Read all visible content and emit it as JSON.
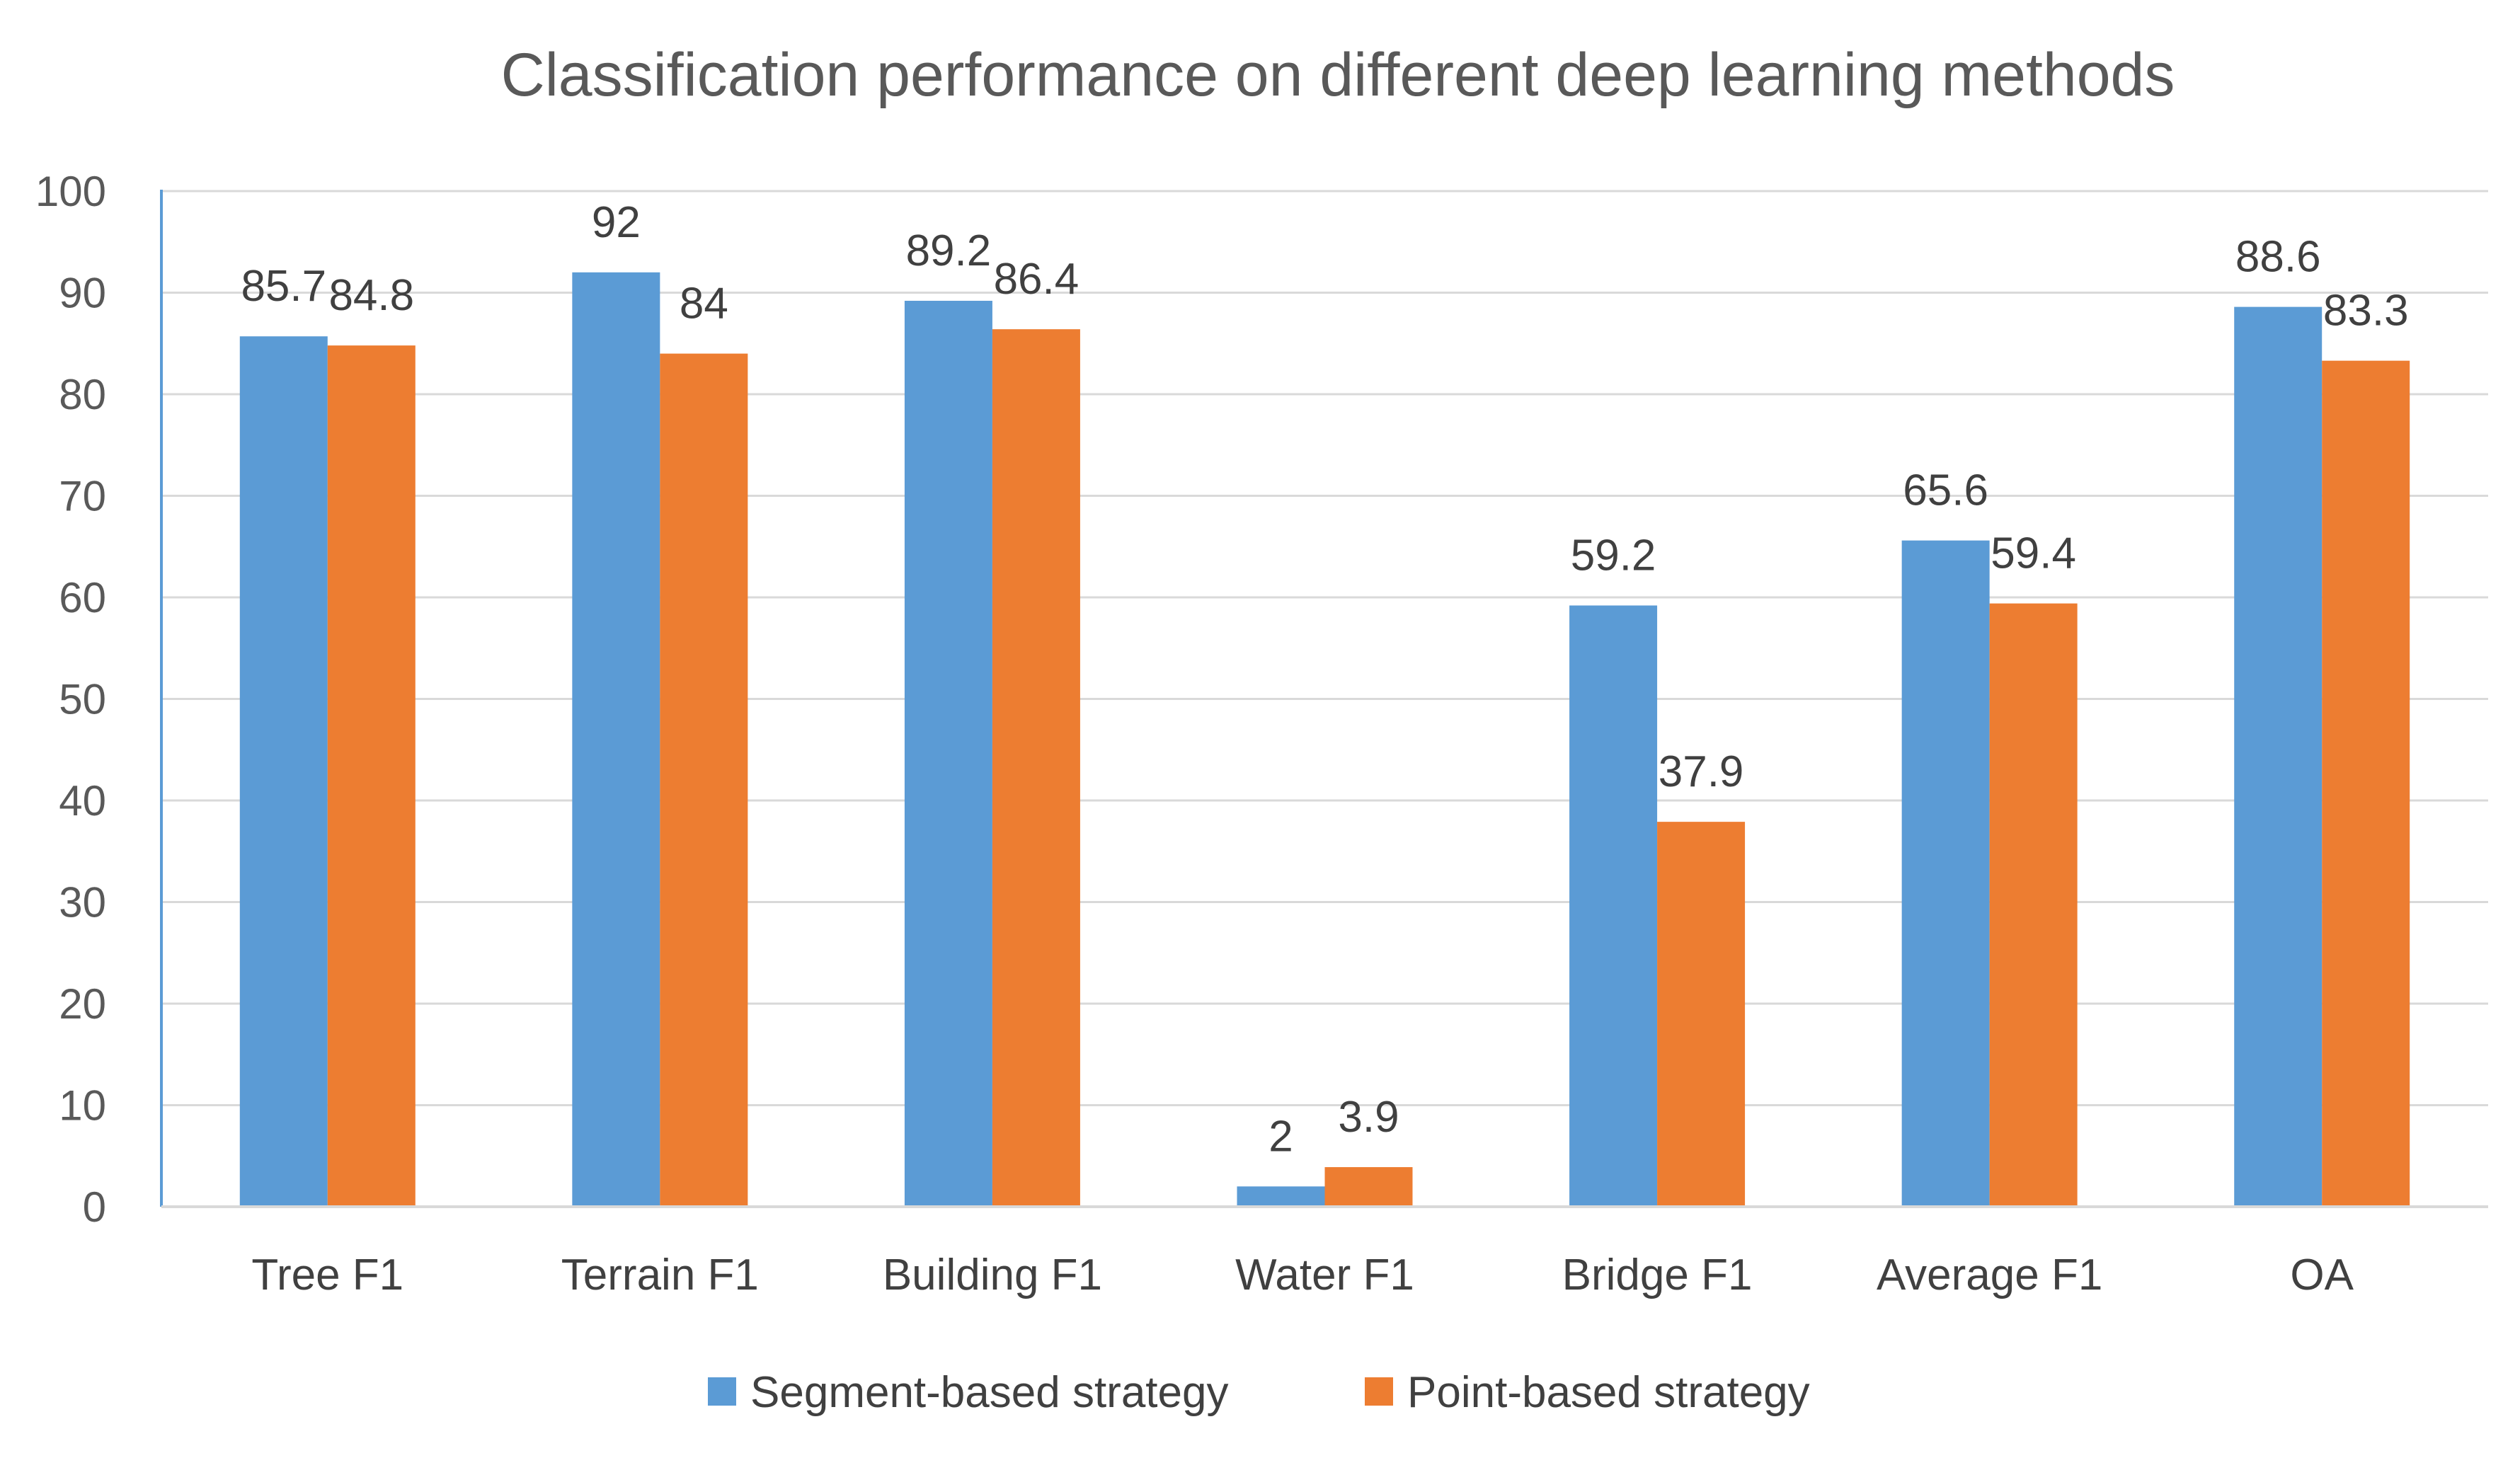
{
  "chart_data": {
    "type": "bar",
    "title": "Classification performance on different deep learning methods",
    "categories": [
      "Tree F1",
      "Terrain F1",
      "Building F1",
      "Water F1",
      "Bridge F1",
      "Average F1",
      "OA"
    ],
    "series": [
      {
        "name": "Segment-based strategy",
        "color": "#5B9BD5",
        "values": [
          85.7,
          92,
          89.2,
          2,
          59.2,
          65.6,
          88.6
        ],
        "labels": [
          "85.7",
          "92",
          "89.2",
          "2",
          "59.2",
          "65.6",
          "88.6"
        ]
      },
      {
        "name": "Point-based strategy",
        "color": "#ED7D31",
        "values": [
          84.8,
          84,
          86.4,
          3.9,
          37.9,
          59.4,
          83.3
        ],
        "labels": [
          "84.8",
          "84",
          "86.4",
          "3.9",
          "37.9",
          "59.4",
          "83.3"
        ]
      }
    ],
    "ylim": [
      0,
      100
    ],
    "yticks": [
      0,
      10,
      20,
      30,
      40,
      50,
      60,
      70,
      80,
      90,
      100
    ],
    "ytick_labels": [
      "0",
      "10",
      "20",
      "30",
      "40",
      "50",
      "60",
      "70",
      "80",
      "90",
      "100"
    ],
    "grid": true,
    "legend_position": "bottom-center",
    "xlabel": "",
    "ylabel": ""
  }
}
